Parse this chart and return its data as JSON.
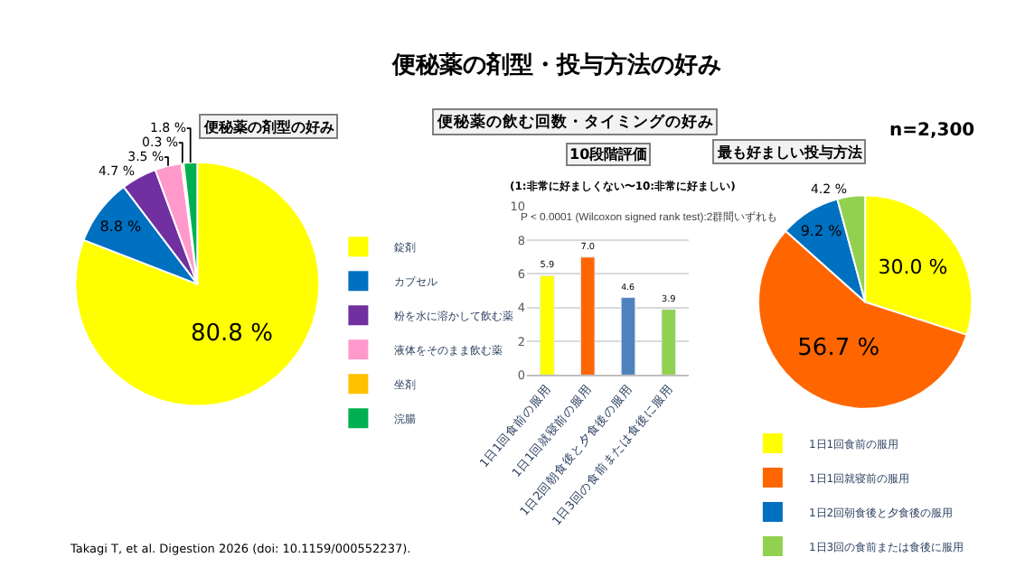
{
  "chart_data": [
    {
      "type": "pie",
      "title": "便秘薬の剤型の好み",
      "categories": [
        "錠剤",
        "カプセル",
        "粉を水に溶かして飲む薬",
        "液体をそのまま飲む薬",
        "坐剤",
        "浣腸"
      ],
      "values": [
        80.8,
        8.8,
        4.7,
        3.5,
        0.3,
        1.8
      ],
      "colors": [
        "#ffff00",
        "#0070c0",
        "#7030a0",
        "#ff99cc",
        "#ffc000",
        "#00b050"
      ],
      "value_labels": [
        "80.8 %",
        "8.8 %",
        "4.7 %",
        "3.5 %",
        "0.3 %",
        "1.8 %"
      ],
      "legend": "bottom",
      "annotations": [
        "便秘薬の剤型・投与方法の好み",
        "Takagi T, et al. Digestion 2026 (doi: 10.1159/000552237)."
      ]
    },
    {
      "type": "bar",
      "title": "10段階評価",
      "subtitle": "(1:非常に好ましくない〜10:非常に好ましい)",
      "categories": [
        "1日1回食前の服用",
        "1日1回就寝前の服用",
        "1日2回朝食後と夕食後の服用",
        "1日3回の食前または食後に服用"
      ],
      "values": [
        5.9,
        7.0,
        4.6,
        3.9
      ],
      "colors": [
        "#ffff00",
        "#ff6600",
        "#4f81bd",
        "#92d050"
      ],
      "ylim": [
        0,
        10
      ],
      "yticks": [
        0,
        2,
        4,
        6,
        8,
        10
      ],
      "grid": "y",
      "value_labels": [
        "5.9",
        "7.0",
        "4.6",
        "3.9"
      ],
      "annotations": [
        "便秘薬の飲む回数・タイミングの好み",
        "n=2,300",
        "P < 0.0001 (Wilcoxon signed rank test):2群間いずれも"
      ]
    },
    {
      "type": "pie",
      "title": "最も好ましい投与方法",
      "categories": [
        "1日1回食前の服用",
        "1日1回就寝前の服用",
        "1日2回朝食後と夕食後の服用",
        "1日3回の食前または食後に服用"
      ],
      "values": [
        30.0,
        56.7,
        9.2,
        4.2
      ],
      "colors": [
        "#ffff00",
        "#ff6600",
        "#0070c0",
        "#92d050"
      ],
      "value_labels": [
        "30.0 %",
        "56.7 %",
        "9.2 %",
        "4.2 %"
      ],
      "legend": "bottom"
    }
  ]
}
